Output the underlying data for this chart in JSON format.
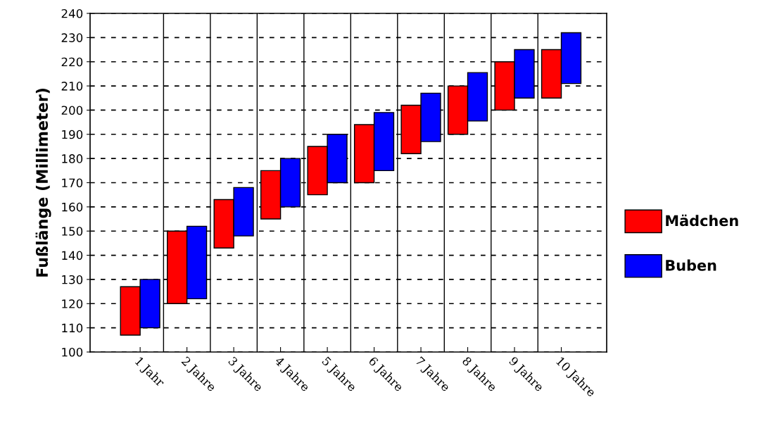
{
  "chart_data": {
    "type": "bar",
    "ylabel": "Fußlänge (Millimeter)",
    "categories": [
      "1 Jahr",
      "2 Jahre",
      "3 Jahre",
      "4 Jahre",
      "5 Jahre",
      "6 Jahre",
      "7 Jahre",
      "8 Jahre",
      "9 Jahre",
      "10 Jahre"
    ],
    "series": [
      {
        "name": "Mädchen",
        "color": "#ff0000",
        "base": [
          107,
          120,
          143,
          155,
          165,
          170,
          182,
          190,
          200,
          205
        ],
        "values": [
          20,
          30,
          20,
          20,
          20,
          24,
          20,
          20,
          20,
          20
        ]
      },
      {
        "name": "Buben",
        "color": "#0000ff",
        "base": [
          110,
          122,
          148,
          160,
          170,
          175,
          187,
          195.5,
          205,
          211
        ],
        "values": [
          20,
          30,
          20,
          20,
          20,
          24,
          20,
          20,
          20,
          21
        ]
      }
    ],
    "ylim": [
      100,
      240
    ],
    "yticks": [
      100,
      110,
      120,
      130,
      140,
      150,
      160,
      170,
      180,
      190,
      200,
      210,
      220,
      230,
      240
    ],
    "grid": true,
    "legend": "right"
  }
}
